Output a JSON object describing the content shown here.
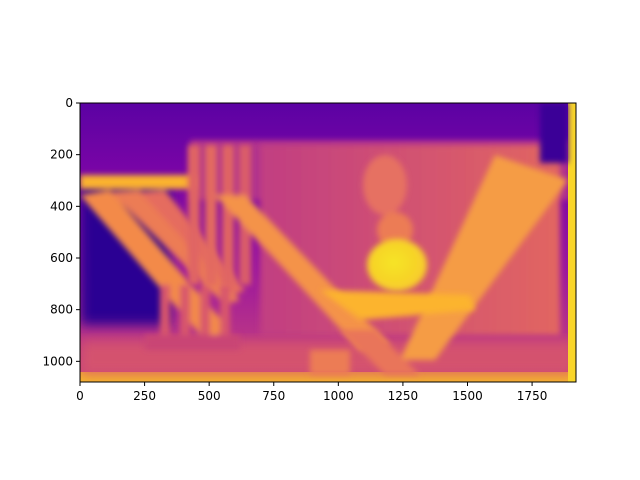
{
  "chart_data": {
    "type": "heatmap",
    "title": "",
    "xlabel": "",
    "ylabel": "",
    "colormap": "plasma",
    "xlim": [
      0,
      1920
    ],
    "ylim": [
      1080,
      0
    ],
    "x_ticks": [
      0,
      250,
      500,
      750,
      1000,
      1250,
      1500,
      1750
    ],
    "y_ticks": [
      0,
      200,
      400,
      600,
      800,
      1000
    ],
    "x_tick_labels": [
      "0",
      "250",
      "500",
      "750",
      "1000",
      "1250",
      "1500",
      "1750"
    ],
    "y_tick_labels": [
      "0",
      "200",
      "400",
      "600",
      "800",
      "1000"
    ],
    "grid": false,
    "legend": "none",
    "colors": {
      "c0": "#0d0887",
      "c1": "#5302a3",
      "c2": "#8b0aa5",
      "c3": "#b83289",
      "c4": "#db5c68",
      "c5": "#f48849",
      "c6": "#febd2a",
      "c7": "#f0f921"
    },
    "description_of_field": "depth-style heatmap: background dark purple, chairs and table in orange/yellow, bright yellow ball near center, yellow vertical strip at right edge"
  }
}
